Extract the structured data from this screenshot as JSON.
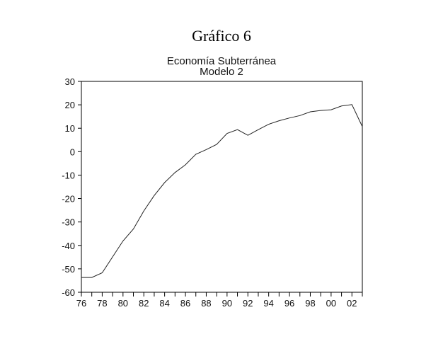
{
  "figure_title": "Gráfico 6",
  "chart_data": {
    "type": "line",
    "title": "Economía Subterránea",
    "subtitle": "Modelo 2",
    "xlabel": "",
    "ylabel": "",
    "x": [
      1976,
      1977,
      1978,
      1979,
      1980,
      1981,
      1982,
      1983,
      1984,
      1985,
      1986,
      1987,
      1988,
      1989,
      1990,
      1991,
      1992,
      1993,
      1994,
      1995,
      1996,
      1997,
      1998,
      1999,
      2000,
      2001,
      2002,
      2003
    ],
    "series": [
      {
        "name": "Modelo 2",
        "values": [
          -53.7,
          -53.7,
          -51.7,
          -44.9,
          -38.1,
          -33.0,
          -25.3,
          -18.7,
          -13.2,
          -8.9,
          -5.6,
          -1.1,
          0.9,
          3.1,
          7.8,
          9.4,
          7.0,
          9.4,
          11.7,
          13.2,
          14.4,
          15.4,
          17.0,
          17.6,
          17.9,
          19.5,
          20.1,
          10.7
        ]
      }
    ],
    "xlim": [
      1976,
      2003
    ],
    "ylim": [
      -60,
      30
    ],
    "yticks": [
      "30",
      "20",
      "10",
      "0",
      "-10",
      "-20",
      "-30",
      "-40",
      "-50",
      "-60"
    ],
    "ytick_values": [
      30,
      20,
      10,
      0,
      -10,
      -20,
      -30,
      -40,
      -50,
      -60
    ],
    "xticks": [
      "76",
      "78",
      "80",
      "82",
      "84",
      "86",
      "88",
      "90",
      "92",
      "94",
      "96",
      "98",
      "00",
      "02"
    ],
    "xtick_values": [
      1976,
      1978,
      1980,
      1982,
      1984,
      1986,
      1988,
      1990,
      1992,
      1994,
      1996,
      1998,
      2000,
      2002
    ],
    "grid": false,
    "legend": "none"
  }
}
